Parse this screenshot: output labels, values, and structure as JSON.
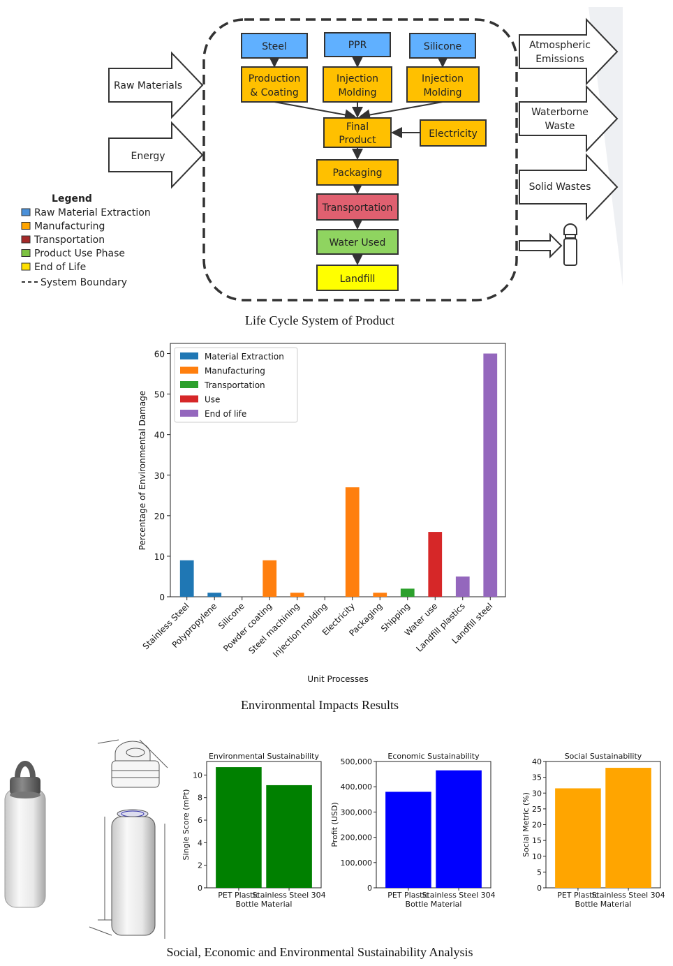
{
  "diagram": {
    "caption": "Life Cycle System of Product",
    "inputs": [
      "Raw Materials",
      "Energy"
    ],
    "materials": [
      "Steel",
      "PPR",
      "Silicone"
    ],
    "processes": [
      [
        "Production",
        "& Coating"
      ],
      [
        "Injection",
        "Molding"
      ],
      [
        "Injection",
        "Molding"
      ]
    ],
    "final_product": [
      "Final",
      "Product"
    ],
    "electricity": "Electricity",
    "packaging": "Packaging",
    "transportation": "Transportation",
    "water_used": "Water Used",
    "landfill": "Landfill",
    "outputs": [
      [
        "Atmospheric",
        "Emissions"
      ],
      [
        "Waterborne",
        "Waste"
      ],
      [
        "Solid Wastes"
      ]
    ],
    "legend_title": "Legend",
    "legend_items": [
      {
        "label": "Raw Material Extraction",
        "color": "#4a90d9"
      },
      {
        "label": "Manufacturing",
        "color": "#ffa500"
      },
      {
        "label": "Transportation",
        "color": "#a52a2a"
      },
      {
        "label": "Product Use Phase",
        "color": "#7dc242"
      },
      {
        "label": "End of Life",
        "color": "#ffe000"
      }
    ],
    "legend_boundary": "System Boundary",
    "colors": {
      "raw": "#60b0ff",
      "manufacturing": "#ffc000",
      "transport": "#e06070",
      "use": "#8fd460",
      "eol": "#ffff00"
    }
  },
  "chart_data": [
    {
      "type": "bar",
      "caption": "Environmental Impacts Results",
      "xlabel": "Unit Processes",
      "ylabel": "Percentage of Environmental Damage",
      "ylim": [
        0,
        62.5
      ],
      "yticks": [
        0,
        10,
        20,
        30,
        40,
        50,
        60
      ],
      "categories": [
        "Stainless Steel",
        "Polypropylene",
        "Silicone",
        "Powder coating",
        "Steel machining",
        "Injection molding",
        "Electricity",
        "Packaging",
        "Shipping",
        "Water use",
        "Landfill plastics",
        "Landfill steel"
      ],
      "values": [
        9,
        1,
        0,
        9,
        1,
        0,
        27,
        1,
        2,
        16,
        5,
        60
      ],
      "groups": [
        "Material Extraction",
        "Material Extraction",
        "Material Extraction",
        "Manufacturing",
        "Manufacturing",
        "Manufacturing",
        "Manufacturing",
        "Manufacturing",
        "Transportation",
        "Use",
        "End of life",
        "End of life"
      ],
      "legend": [
        {
          "name": "Material Extraction",
          "color": "#1f77b4"
        },
        {
          "name": "Manufacturing",
          "color": "#ff7f0e"
        },
        {
          "name": "Transportation",
          "color": "#2ca02c"
        },
        {
          "name": "Use",
          "color": "#d62728"
        },
        {
          "name": "End of life",
          "color": "#9467bd"
        }
      ],
      "legend_placement": "top-left"
    },
    {
      "type": "bar",
      "title": "Environmental Sustainability",
      "xlabel": "Bottle Material",
      "ylabel": "Single Score (mPt)",
      "categories": [
        "PET Plastic",
        "Stainless Steel 304"
      ],
      "values": [
        10.7,
        9.1
      ],
      "ylim": [
        0,
        11.2
      ],
      "yticks": [
        0,
        2,
        4,
        6,
        8,
        10
      ],
      "color": "#008000"
    },
    {
      "type": "bar",
      "title": "Economic Sustainability",
      "xlabel": "Bottle Material",
      "ylabel": "Profit (USD)",
      "categories": [
        "PET Plastic",
        "Stainless Steel 304"
      ],
      "values": [
        380000,
        465000
      ],
      "ylim": [
        0,
        500000
      ],
      "yticks": [
        0,
        100000,
        200000,
        300000,
        400000,
        500000
      ],
      "ytick_labels": [
        "0",
        "100,000",
        "200,000",
        "300,000",
        "400,000",
        "500,000"
      ],
      "color": "#0000ff"
    },
    {
      "type": "bar",
      "title": "Social Sustainability",
      "xlabel": "Bottle Material",
      "ylabel": "Social Metric (%)",
      "categories": [
        "PET Plastic",
        "Stainless Steel 304"
      ],
      "values": [
        31.5,
        38
      ],
      "ylim": [
        0,
        40
      ],
      "yticks": [
        0,
        5,
        10,
        15,
        20,
        25,
        30,
        35,
        40
      ],
      "color": "#ffa500"
    }
  ],
  "bottom_caption": "Social, Economic and Environmental Sustainability Analysis"
}
